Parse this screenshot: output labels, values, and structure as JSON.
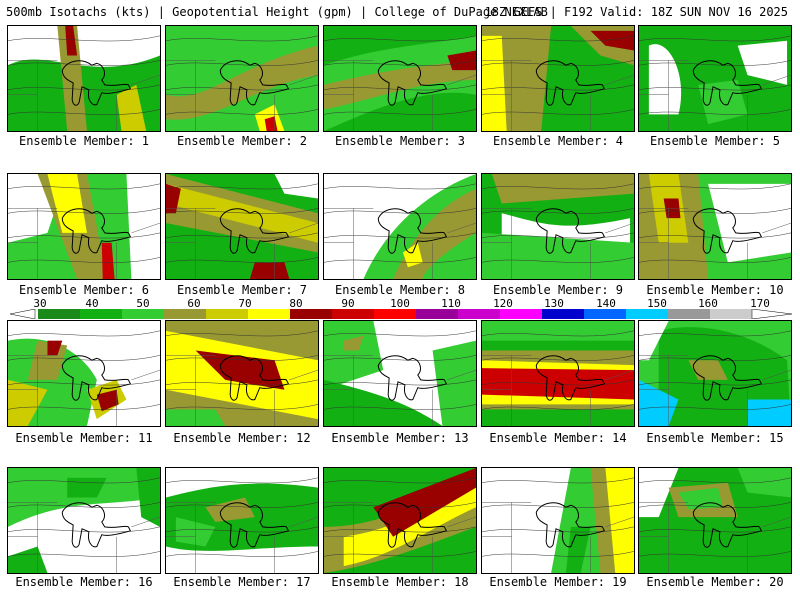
{
  "header": {
    "left": "500mb Isotachs (kts) | Geopotential Height (gpm) | College of DuPage NEXLAB",
    "right": "18Z GEFS | F192 Valid: 18Z SUN NOV 16 2025"
  },
  "legend": {
    "labels": [
      "30",
      "40",
      "50",
      "60",
      "70",
      "80",
      "90",
      "100",
      "110",
      "120",
      "130",
      "140",
      "150",
      "160",
      "170"
    ],
    "colors": [
      "#1a8a1a",
      "#12b012",
      "#33cc33",
      "#999933",
      "#cccc00",
      "#ffff00",
      "#990000",
      "#cc0000",
      "#ff0000",
      "#990099",
      "#cc00cc",
      "#ff00ff",
      "#0000cc",
      "#0066ff",
      "#00ccff",
      "#999999",
      "#cccccc"
    ]
  },
  "panels": [
    {
      "caption": "Ensemble Member: 1"
    },
    {
      "caption": "Ensemble Member: 2"
    },
    {
      "caption": "Ensemble Member: 3"
    },
    {
      "caption": "Ensemble Member: 4"
    },
    {
      "caption": "Ensemble Member: 5"
    },
    {
      "caption": "Ensemble Member: 6"
    },
    {
      "caption": "Ensemble Member: 7"
    },
    {
      "caption": "Ensemble Member: 8"
    },
    {
      "caption": "Ensemble Member: 9"
    },
    {
      "caption": "Ensemble Member: 10"
    },
    {
      "caption": "Ensemble Member: 11"
    },
    {
      "caption": "Ensemble Member: 12"
    },
    {
      "caption": "Ensemble Member: 13"
    },
    {
      "caption": "Ensemble Member: 14"
    },
    {
      "caption": "Ensemble Member: 15"
    },
    {
      "caption": "Ensemble Member: 16"
    },
    {
      "caption": "Ensemble Member: 17"
    },
    {
      "caption": "Ensemble Member: 18"
    },
    {
      "caption": "Ensemble Member: 19"
    },
    {
      "caption": "Ensemble Member: 20"
    }
  ]
}
